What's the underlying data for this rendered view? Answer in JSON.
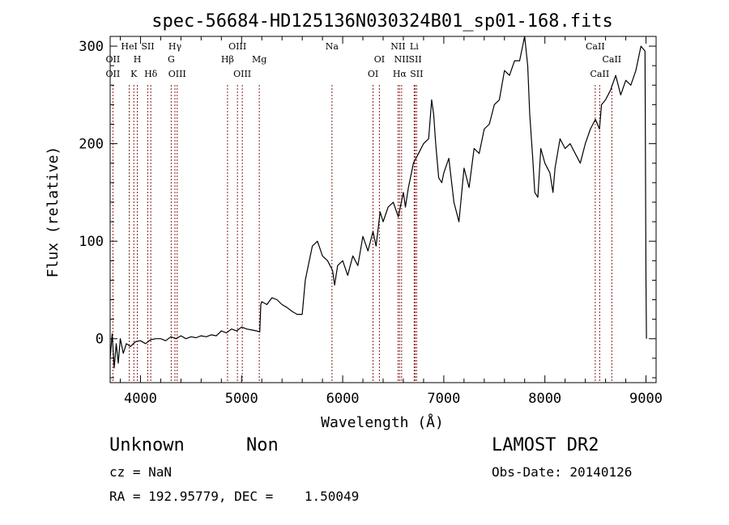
{
  "chart_data": {
    "type": "line",
    "title": "spec-56684-HD125136N030324B01_sp01-168.fits",
    "xlabel": "Wavelength (Å)",
    "ylabel": "Flux (relative)",
    "xlim": [
      3700,
      9100
    ],
    "ylim": [
      -45,
      310
    ],
    "xticks": [
      4000,
      5000,
      6000,
      7000,
      8000,
      9000
    ],
    "yticks": [
      0,
      100,
      200,
      300
    ],
    "grid": false,
    "line_color": "#000000",
    "marker_color": "#8b1a1a",
    "series": [
      {
        "x": [
          3700,
          3720,
          3740,
          3760,
          3780,
          3800,
          3830,
          3860,
          3900,
          3950,
          4000,
          4050,
          4100,
          4150,
          4200,
          4250,
          4300,
          4350,
          4400,
          4450,
          4500,
          4550,
          4600,
          4650,
          4700,
          4750,
          4800,
          4850,
          4900,
          4950,
          5000,
          5050,
          5100,
          5150,
          5180,
          5190,
          5200,
          5250,
          5300,
          5350,
          5400,
          5450,
          5500,
          5550,
          5600,
          5630,
          5660,
          5700,
          5750,
          5800,
          5850,
          5900,
          5920,
          5950,
          6000,
          6050,
          6100,
          6150,
          6200,
          6250,
          6300,
          6330,
          6370,
          6400,
          6450,
          6500,
          6550,
          6600,
          6620,
          6650,
          6700,
          6750,
          6800,
          6850,
          6880,
          6900,
          6920,
          6950,
          6980,
          7000,
          7050,
          7100,
          7150,
          7200,
          7250,
          7300,
          7350,
          7400,
          7450,
          7500,
          7550,
          7600,
          7650,
          7700,
          7750,
          7780,
          7800,
          7830,
          7850,
          7880,
          7900,
          7930,
          7960,
          8000,
          8050,
          8080,
          8100,
          8150,
          8200,
          8250,
          8300,
          8350,
          8400,
          8450,
          8500,
          8540,
          8560,
          8600,
          8650,
          8700,
          8750,
          8800,
          8850,
          8900,
          8950,
          8990,
          9000,
          9005
        ],
        "y": [
          -20,
          5,
          -30,
          -5,
          -25,
          0,
          -15,
          -5,
          -8,
          -3,
          -2,
          -5,
          -1,
          0,
          0,
          -2,
          2,
          0,
          3,
          0,
          2,
          1,
          3,
          2,
          4,
          3,
          8,
          6,
          10,
          8,
          12,
          10,
          9,
          8,
          7,
          35,
          38,
          35,
          42,
          40,
          35,
          32,
          28,
          25,
          25,
          60,
          75,
          95,
          100,
          85,
          80,
          70,
          55,
          75,
          80,
          65,
          85,
          75,
          105,
          90,
          110,
          95,
          130,
          120,
          135,
          140,
          125,
          150,
          135,
          155,
          180,
          190,
          200,
          205,
          245,
          230,
          200,
          165,
          160,
          170,
          185,
          140,
          120,
          175,
          155,
          195,
          190,
          215,
          220,
          240,
          245,
          275,
          270,
          285,
          285,
          300,
          310,
          280,
          230,
          185,
          150,
          145,
          195,
          180,
          170,
          150,
          175,
          205,
          195,
          200,
          190,
          180,
          200,
          215,
          225,
          215,
          240,
          245,
          255,
          270,
          250,
          265,
          260,
          275,
          300,
          295,
          60,
          0
        ]
      }
    ],
    "markers": [
      {
        "wavelength": 3727,
        "labels": [
          "OII",
          "OII"
        ]
      },
      {
        "wavelength": 3889,
        "labels": [
          "HeI"
        ]
      },
      {
        "wavelength": 3934,
        "labels": [
          "K"
        ]
      },
      {
        "wavelength": 3969,
        "labels": [
          "H"
        ]
      },
      {
        "wavelength": 4072,
        "labels": [
          "SII"
        ]
      },
      {
        "wavelength": 4102,
        "labels": [
          "Hδ"
        ]
      },
      {
        "wavelength": 4304,
        "labels": [
          "G"
        ]
      },
      {
        "wavelength": 4341,
        "labels": [
          "Hγ"
        ]
      },
      {
        "wavelength": 4363,
        "labels": [
          "OIII"
        ]
      },
      {
        "wavelength": 4861,
        "labels": [
          "Hβ"
        ]
      },
      {
        "wavelength": 4959,
        "labels": [
          "OIII"
        ]
      },
      {
        "wavelength": 5007,
        "labels": [
          "OIII"
        ]
      },
      {
        "wavelength": 5175,
        "labels": [
          "Mg"
        ]
      },
      {
        "wavelength": 5894,
        "labels": [
          "Na"
        ]
      },
      {
        "wavelength": 6300,
        "labels": [
          "OI"
        ]
      },
      {
        "wavelength": 6363,
        "labels": [
          "OI"
        ]
      },
      {
        "wavelength": 6548,
        "labels": [
          "NII"
        ]
      },
      {
        "wavelength": 6563,
        "labels": [
          "Hα"
        ]
      },
      {
        "wavelength": 6583,
        "labels": [
          "NII"
        ]
      },
      {
        "wavelength": 6707,
        "labels": [
          "Li"
        ]
      },
      {
        "wavelength": 6717,
        "labels": [
          "SII"
        ]
      },
      {
        "wavelength": 6731,
        "labels": [
          "SII"
        ]
      },
      {
        "wavelength": 8498,
        "labels": [
          "CaII"
        ]
      },
      {
        "wavelength": 8542,
        "labels": [
          "CaII"
        ]
      },
      {
        "wavelength": 8662,
        "labels": [
          "CaII"
        ]
      }
    ]
  },
  "info": {
    "class": "Unknown",
    "subclass": "Non",
    "survey": "LAMOST DR2",
    "cz": "cz = NaN",
    "obs_date": "Obs-Date: 20140126",
    "coords": "RA = 192.95779, DEC =    1.50049"
  }
}
